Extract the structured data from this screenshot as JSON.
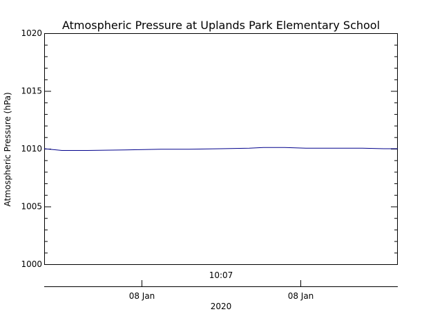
{
  "chart_data": {
    "type": "line",
    "title": "Atmospheric Pressure at Uplands Park Elementary School",
    "ylabel": "Atmospheric Pressure (hPa)",
    "ylim": [
      1000,
      1020
    ],
    "yticks": [
      {
        "value": 1000,
        "label": "1000"
      },
      {
        "value": 1005,
        "label": "1005"
      },
      {
        "value": 1010,
        "label": "1010"
      },
      {
        "value": 1015,
        "label": "1015"
      },
      {
        "value": 1020,
        "label": "1020"
      }
    ],
    "y_minor_step": 1,
    "xlim": [
      0,
      1
    ],
    "xaxis_time_label": "10:07",
    "xaxis_date_ticks": [
      {
        "x": 0.275,
        "label": "08 Jan"
      },
      {
        "x": 0.725,
        "label": "08 Jan"
      }
    ],
    "xlabel": "2020",
    "series": [
      {
        "color": "#00008b",
        "x": [
          0.0,
          0.05,
          0.12,
          0.23,
          0.33,
          0.41,
          0.5,
          0.58,
          0.62,
          0.68,
          0.74,
          0.82,
          0.9,
          0.96,
          1.0
        ],
        "y": [
          1010.0,
          1009.85,
          1009.85,
          1009.9,
          1009.95,
          1009.95,
          1010.0,
          1010.05,
          1010.1,
          1010.1,
          1010.05,
          1010.05,
          1010.05,
          1010.0,
          1010.0
        ]
      }
    ],
    "grid": false,
    "legend": "none"
  }
}
